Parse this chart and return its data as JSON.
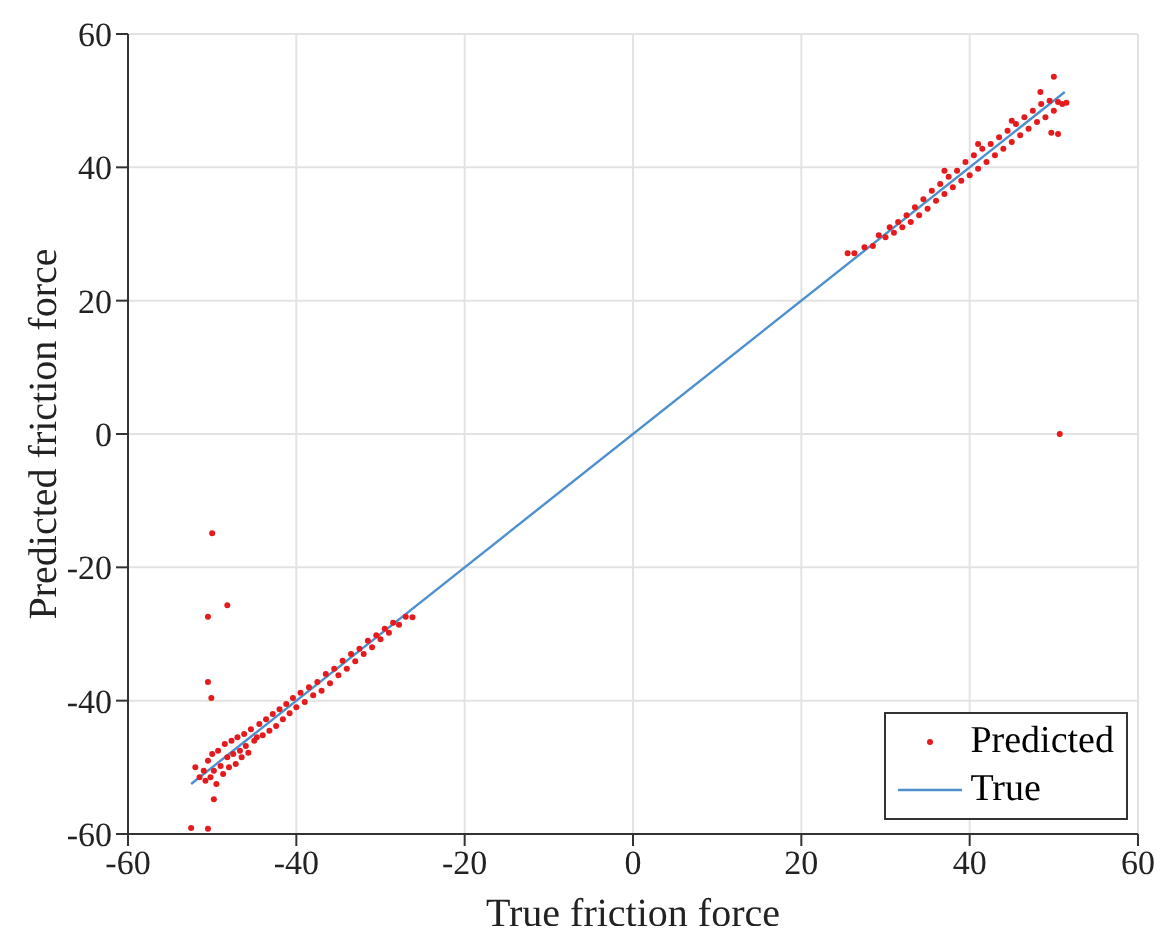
{
  "chart_data": {
    "type": "scatter",
    "xlabel": "True friction force",
    "ylabel": "Predicted friction force",
    "xlim": [
      -60,
      60
    ],
    "xticks": [
      -60,
      -40,
      -20,
      0,
      20,
      40,
      60
    ],
    "ylim": [
      -60,
      60
    ],
    "yticks": [
      -60,
      -40,
      -20,
      0,
      20,
      40,
      60
    ],
    "grid": true,
    "legend": "bottom right",
    "marker": "circle",
    "series": [
      {
        "name": "Predicted",
        "color": "#e41a1c",
        "x": [
          -51,
          -50.8,
          -50.5,
          -50.2,
          -50,
          -49.8,
          -49.5,
          -49.3,
          -49,
          -48.7,
          -48.5,
          -48.2,
          -48,
          -47.7,
          -47.5,
          -47.2,
          -47,
          -46.7,
          -46.5,
          -46.2,
          -46,
          -45.7,
          -45.4,
          -45,
          -44.7,
          -44.4,
          -44,
          -43.6,
          -43.2,
          -42.8,
          -42.4,
          -42,
          -41.6,
          -41.2,
          -40.8,
          -40.4,
          -40,
          -39.5,
          -39,
          -38.5,
          -38,
          -37.5,
          -37,
          -36.5,
          -36,
          -35.5,
          -35,
          -34.5,
          -34,
          -33.5,
          -33,
          -32.5,
          -32,
          -31.5,
          -31,
          -30.5,
          -30,
          -29.5,
          -29,
          -28.5,
          -27.8,
          -27,
          -26.2,
          -50,
          -50.5,
          -48.2,
          -50.5,
          -50.1,
          -52.5,
          -50.5,
          -49.8,
          -51.5,
          -52,
          25.5,
          26.3,
          27.5,
          28.5,
          29.2,
          30,
          30.5,
          31,
          31.5,
          32,
          32.5,
          33,
          33.5,
          34,
          34.5,
          35,
          35.5,
          36,
          36.5,
          37,
          37.5,
          38,
          38.5,
          39,
          39.5,
          40,
          40.5,
          41,
          41.5,
          42,
          42.5,
          43,
          43.5,
          44,
          44.5,
          45,
          45.5,
          46,
          46.5,
          47,
          47.5,
          48,
          48.5,
          49,
          49.5,
          50,
          50.5,
          51,
          51.5,
          49.7,
          50.5,
          50,
          48.4,
          45,
          41,
          37,
          50.7
        ],
        "values": [
          -50.5,
          -52,
          -49,
          -51.5,
          -48,
          -50.5,
          -52.5,
          -47.5,
          -49.8,
          -51,
          -46.5,
          -48.5,
          -50,
          -46,
          -48,
          -49.5,
          -45.5,
          -47.5,
          -48.5,
          -45,
          -46.8,
          -47.8,
          -44.3,
          -46,
          -45.5,
          -43.5,
          -45.2,
          -42.8,
          -44.5,
          -42,
          -43.8,
          -41.3,
          -42.8,
          -40.5,
          -41.9,
          -39.6,
          -41,
          -38.8,
          -40.2,
          -38,
          -39.2,
          -37.2,
          -38.5,
          -36,
          -37.4,
          -35.2,
          -36.2,
          -34,
          -35.2,
          -33,
          -34.1,
          -32.2,
          -33,
          -31,
          -32,
          -30.2,
          -30.8,
          -29.2,
          -29.8,
          -28.3,
          -28.6,
          -27.4,
          -27.5,
          -14.9,
          -27.4,
          -25.7,
          -37.2,
          -39.6,
          -59.1,
          -59.2,
          -54.8,
          -51.5,
          -50,
          27.1,
          27.1,
          28,
          28.2,
          29.8,
          29.5,
          31,
          30.2,
          31.8,
          31,
          32.8,
          31.8,
          34,
          32.8,
          35.2,
          33.8,
          36.5,
          35,
          37.5,
          36,
          38.6,
          37,
          39.5,
          38,
          40.8,
          38.8,
          41.8,
          39.8,
          42.8,
          40.8,
          43.5,
          41.8,
          44.5,
          42.8,
          45.5,
          43.8,
          46.5,
          44.8,
          47.5,
          45.8,
          48.5,
          46.8,
          49.5,
          47.5,
          50,
          48.5,
          49.8,
          49.5,
          49.7,
          45.2,
          45,
          53.6,
          51.3,
          47,
          43.5,
          39.5,
          0
        ]
      },
      {
        "name": "True",
        "type": "line",
        "color": "#4d8fcf",
        "line_style": "solid",
        "marker": "none",
        "x": [
          -52.5,
          51.3
        ],
        "values": [
          -52.5,
          51.3
        ]
      }
    ]
  }
}
